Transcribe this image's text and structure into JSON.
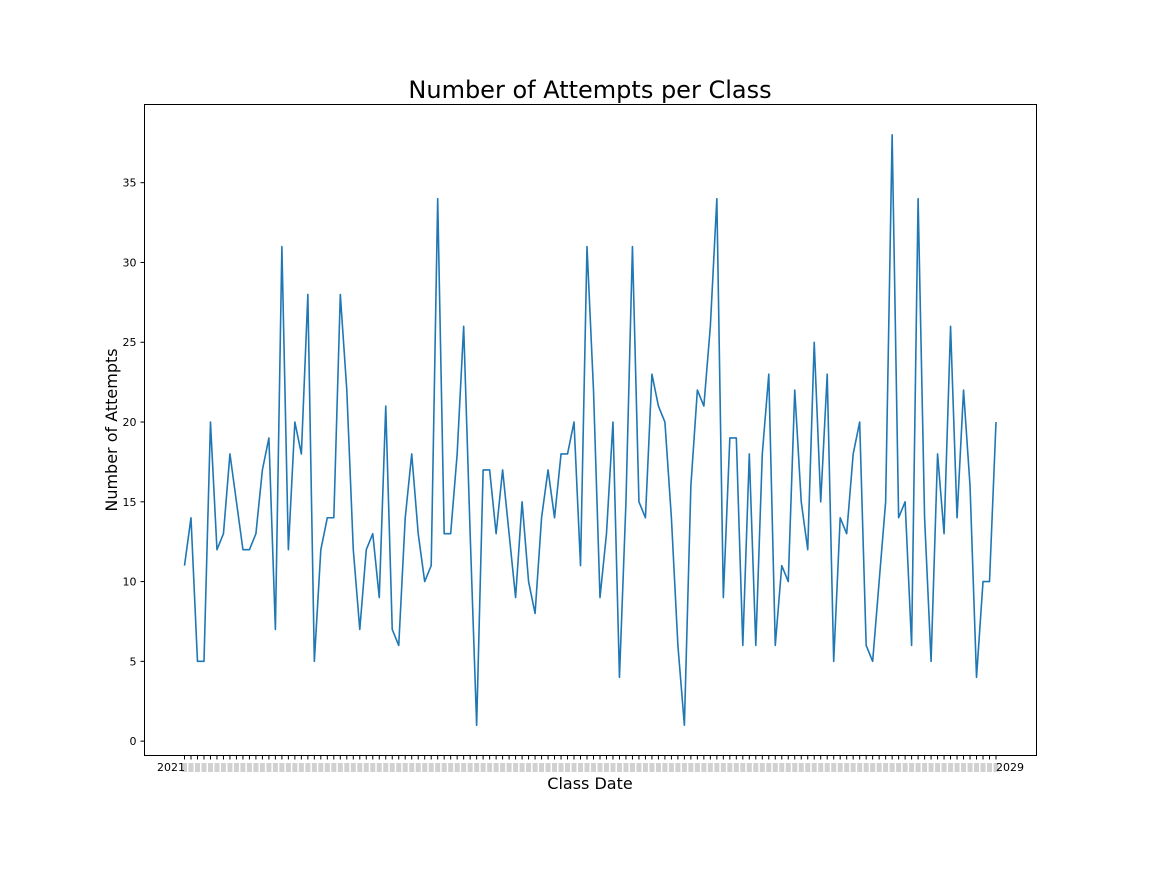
{
  "chart_data": {
    "type": "line",
    "title": "Number of Attempts per Class",
    "xlabel": "Class Date",
    "ylabel": "Number of Attempts",
    "ylim": [
      -0.9,
      39.9
    ],
    "yticks": [
      0,
      5,
      10,
      15,
      20,
      25,
      30,
      35
    ],
    "ytick_labels": [
      "0",
      "5",
      "10",
      "15",
      "20",
      "25",
      "30",
      "35"
    ],
    "x_tick_labels_note_visible_ends": [
      "2021",
      "2029"
    ],
    "grid": false,
    "series": [
      {
        "color": "#1f77b4",
        "values": [
          11,
          14,
          5,
          5,
          20,
          12,
          13,
          18,
          15,
          12,
          12,
          13,
          17,
          19,
          7,
          31,
          12,
          20,
          18,
          28,
          5,
          12,
          14,
          14,
          28,
          22,
          12,
          7,
          12,
          13,
          9,
          21,
          7,
          6,
          14,
          18,
          13,
          10,
          11,
          34,
          13,
          13,
          18,
          26,
          13,
          1,
          17,
          17,
          13,
          17,
          13,
          9,
          15,
          10,
          8,
          14,
          17,
          14,
          18,
          18,
          20,
          11,
          31,
          22,
          9,
          13,
          20,
          4,
          15,
          31,
          15,
          14,
          23,
          21,
          20,
          14,
          6,
          1,
          16,
          22,
          21,
          26,
          34,
          9,
          19,
          19,
          6,
          18,
          6,
          18,
          23,
          6,
          11,
          10,
          22,
          15,
          12,
          25,
          15,
          23,
          5,
          14,
          13,
          18,
          20,
          6,
          5,
          10,
          15,
          38,
          14,
          15,
          6,
          34,
          14,
          5,
          18,
          13,
          26,
          14,
          22,
          16,
          4,
          10,
          10,
          20
        ]
      }
    ]
  }
}
